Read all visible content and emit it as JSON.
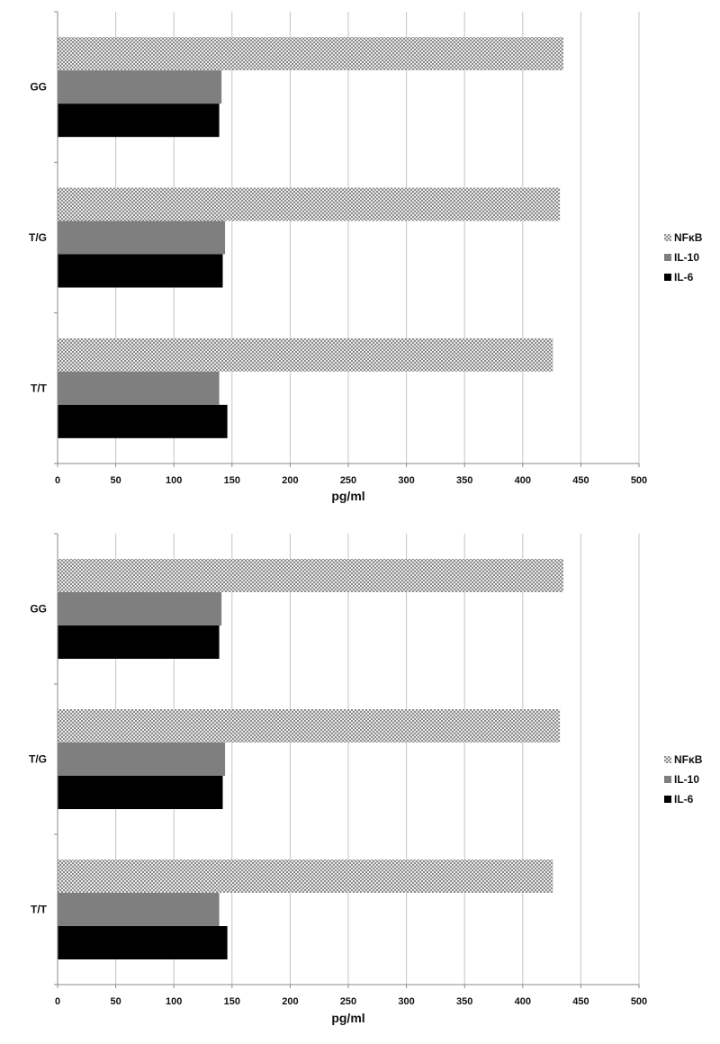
{
  "chart_data": [
    {
      "type": "bar",
      "orientation": "horizontal",
      "title": "",
      "xlabel": "pg/ml",
      "ylabel": "",
      "xlim": [
        0,
        500
      ],
      "xticks": [
        "0",
        "50",
        "100",
        "150",
        "200",
        "250",
        "300",
        "350",
        "400",
        "450",
        "500"
      ],
      "grid": "vertical",
      "legend": "right",
      "categories": [
        "GG",
        "T/G",
        "T/T"
      ],
      "series": [
        {
          "name": "NFκB",
          "values": [
            435,
            432,
            426
          ],
          "color": "#9a9a9a",
          "pattern": "dotted"
        },
        {
          "name": "IL-10",
          "values": [
            141,
            144,
            139
          ],
          "color": "#7f7f7f",
          "pattern": "solid"
        },
        {
          "name": "IL-6",
          "values": [
            139,
            142,
            146
          ],
          "color": "#000000",
          "pattern": "solid"
        }
      ]
    },
    {
      "type": "bar",
      "orientation": "horizontal",
      "title": "",
      "xlabel": "pg/ml",
      "ylabel": "",
      "xlim": [
        0,
        500
      ],
      "xticks": [
        "0",
        "50",
        "100",
        "150",
        "200",
        "250",
        "300",
        "350",
        "400",
        "450",
        "500"
      ],
      "grid": "vertical",
      "legend": "right",
      "categories": [
        "GG",
        "T/G",
        "T/T"
      ],
      "series": [
        {
          "name": "NFκB",
          "values": [
            435,
            432,
            426
          ],
          "color": "#9a9a9a",
          "pattern": "dotted"
        },
        {
          "name": "IL-10",
          "values": [
            141,
            144,
            139
          ],
          "color": "#7f7f7f",
          "pattern": "solid"
        },
        {
          "name": "IL-6",
          "values": [
            139,
            142,
            146
          ],
          "color": "#000000",
          "pattern": "solid"
        }
      ]
    }
  ]
}
